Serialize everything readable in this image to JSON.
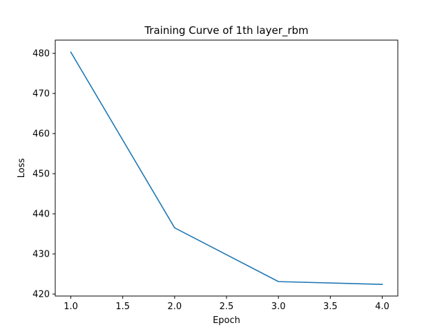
{
  "chart_data": {
    "type": "line",
    "title": "Training Curve of 1th layer_rbm",
    "xlabel": "Epoch",
    "ylabel": "Loss",
    "x": [
      1.0,
      2.0,
      3.0,
      4.0
    ],
    "series": [
      {
        "values": [
          480.3,
          436.5,
          423.1,
          422.4
        ],
        "color": "#1f77b4"
      }
    ],
    "xlim": [
      0.85,
      4.15
    ],
    "ylim": [
      419.5,
      483.3
    ],
    "xticks": [
      1.0,
      1.5,
      2.0,
      2.5,
      3.0,
      3.5,
      4.0
    ],
    "xtick_labels": [
      "1.0",
      "1.5",
      "2.0",
      "2.5",
      "3.0",
      "3.5",
      "4.0"
    ],
    "yticks": [
      420,
      430,
      440,
      450,
      460,
      470,
      480
    ],
    "ytick_labels": [
      "420",
      "430",
      "440",
      "450",
      "460",
      "470",
      "480"
    ],
    "grid": false,
    "legend": false
  }
}
